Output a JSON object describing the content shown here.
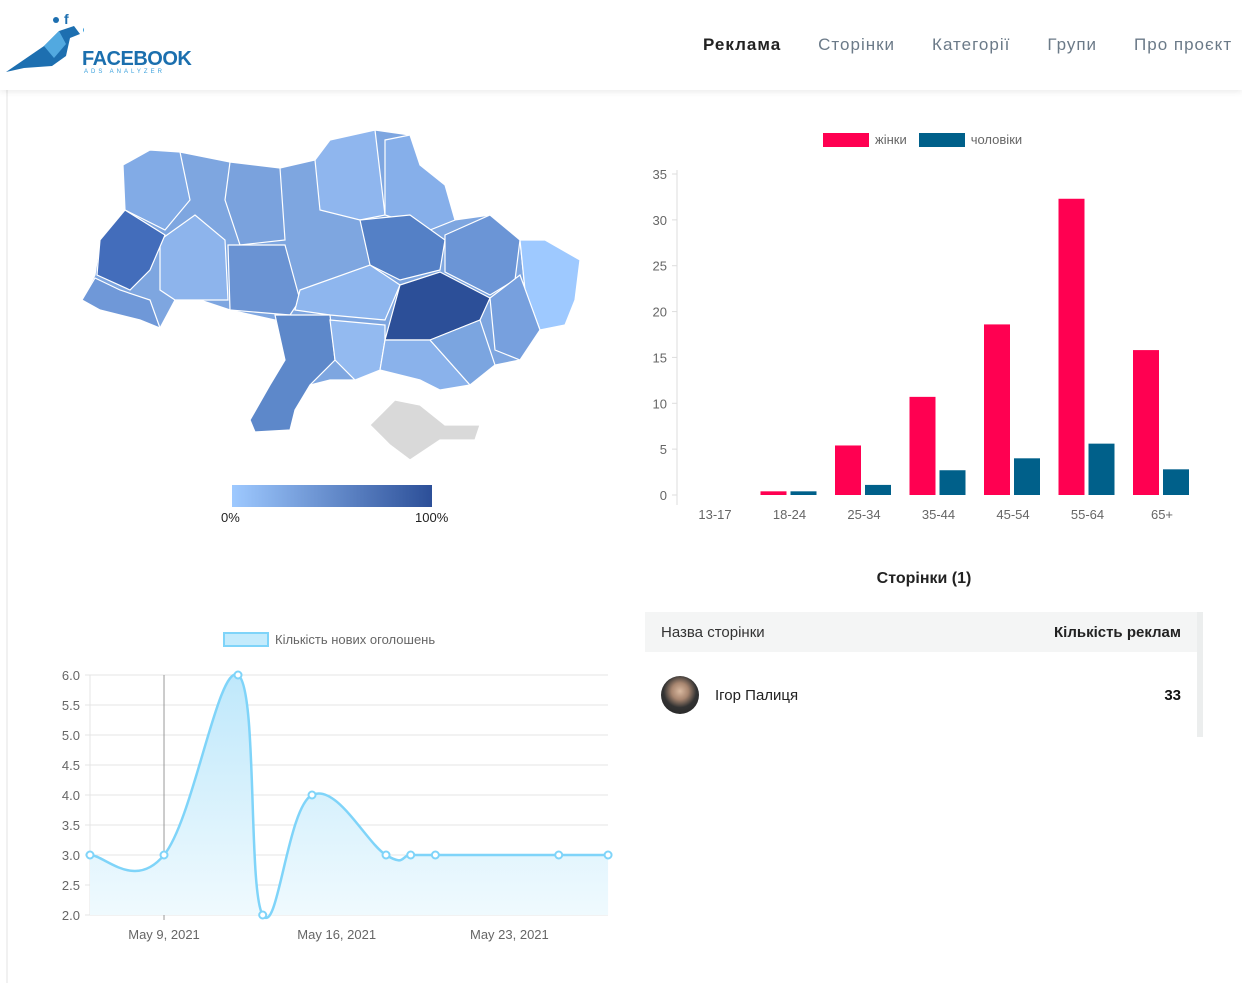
{
  "header": {
    "logo_text": "FACEBOOK",
    "logo_subtext": "ADS ANALYZER",
    "nav": [
      {
        "label": "Реклама",
        "active": true
      },
      {
        "label": "Сторінки"
      },
      {
        "label": "Категорії"
      },
      {
        "label": "Групи"
      },
      {
        "label": "Про проєкт"
      }
    ]
  },
  "map": {
    "legend_min": "0%",
    "legend_max": "100%",
    "color_min": "#9ec9ff",
    "color_max": "#2c4f98"
  },
  "chart_data": [
    {
      "type": "bar",
      "title": "",
      "categories": [
        "13-17",
        "18-24",
        "25-34",
        "35-44",
        "45-54",
        "55-64",
        "65+"
      ],
      "series": [
        {
          "name": "жінки",
          "color": "#ff0051",
          "values": [
            0,
            0.4,
            5.4,
            10.7,
            18.6,
            32.3,
            15.8
          ]
        },
        {
          "name": "чоловіки",
          "color": "#00608a",
          "values": [
            0,
            0.4,
            1.1,
            2.7,
            4,
            5.6,
            2.8
          ]
        }
      ],
      "ylim": [
        0,
        35
      ],
      "yticks": [
        "0",
        "5",
        "10",
        "15",
        "20",
        "25",
        "30",
        "35"
      ],
      "legend": "top"
    },
    {
      "type": "area",
      "series": [
        {
          "name": "Кількість нових оголошень",
          "color": "#7fd4f9",
          "x": [
            "2021-05-06",
            "2021-05-09",
            "2021-05-12",
            "2021-05-13",
            "2021-05-15",
            "2021-05-18",
            "2021-05-19",
            "2021-05-20",
            "2021-05-25",
            "2021-05-27"
          ],
          "values": [
            3,
            3,
            6,
            2,
            4,
            3,
            3,
            3,
            3,
            3
          ]
        }
      ],
      "ylim": [
        2,
        6
      ],
      "yticks": [
        "2.0",
        "2.5",
        "3.0",
        "3.5",
        "4.0",
        "4.5",
        "5.0",
        "5.5",
        "6.0"
      ],
      "xticks": [
        {
          "date": "2021-05-09",
          "label": "May 9, 2021"
        },
        {
          "date": "2021-05-16",
          "label": "May 16, 2021"
        },
        {
          "date": "2021-05-23",
          "label": "May 23, 2021"
        }
      ],
      "legend": "top"
    }
  ],
  "pages": {
    "title": "Сторінки (1)",
    "col_name": "Назва сторінки",
    "col_count": "Кількість реклам",
    "rows": [
      {
        "name": "Ігор Палиця",
        "count": "33"
      }
    ]
  }
}
